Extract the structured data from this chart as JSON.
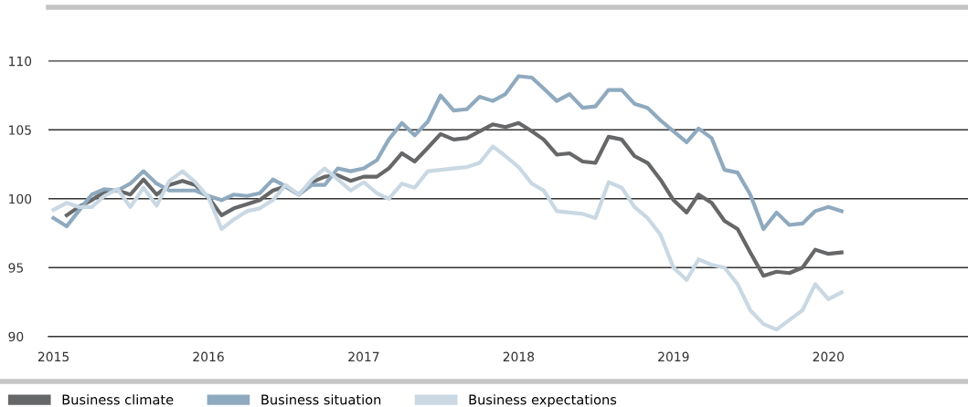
{
  "chart_data": {
    "type": "line",
    "x": [
      "2015-01",
      "2015-02",
      "2015-03",
      "2015-04",
      "2015-05",
      "2015-06",
      "2015-07",
      "2015-08",
      "2015-09",
      "2015-10",
      "2015-11",
      "2015-12",
      "2016-01",
      "2016-02",
      "2016-03",
      "2016-04",
      "2016-05",
      "2016-06",
      "2016-07",
      "2016-08",
      "2016-09",
      "2016-10",
      "2016-11",
      "2016-12",
      "2017-01",
      "2017-02",
      "2017-03",
      "2017-04",
      "2017-05",
      "2017-06",
      "2017-07",
      "2017-08",
      "2017-09",
      "2017-10",
      "2017-11",
      "2017-12",
      "2018-01",
      "2018-02",
      "2018-03",
      "2018-04",
      "2018-05",
      "2018-06",
      "2018-07",
      "2018-08",
      "2018-09",
      "2018-10",
      "2018-11",
      "2018-12",
      "2019-01",
      "2019-02",
      "2019-03",
      "2019-04",
      "2019-05",
      "2019-06",
      "2019-07",
      "2019-08",
      "2019-09",
      "2019-10",
      "2019-11",
      "2019-12",
      "2020-01",
      "2020-02"
    ],
    "series": [
      {
        "name": "Business climate",
        "color": "#666769",
        "values": [
          null,
          98.8,
          99.4,
          99.9,
          100.5,
          100.6,
          100.3,
          101.4,
          100.3,
          101.0,
          101.3,
          101.0,
          100.1,
          98.8,
          99.3,
          99.6,
          99.9,
          100.6,
          100.9,
          100.3,
          101.2,
          101.6,
          101.7,
          101.3,
          101.6,
          101.6,
          102.2,
          103.3,
          102.7,
          103.7,
          104.7,
          104.3,
          104.4,
          104.9,
          105.4,
          105.2,
          105.5,
          104.9,
          104.3,
          103.2,
          103.3,
          102.7,
          102.6,
          104.5,
          104.3,
          103.1,
          102.6,
          101.4,
          99.9,
          99.0,
          100.3,
          99.7,
          98.4,
          97.8,
          96.1,
          94.4,
          94.7,
          94.6,
          95.0,
          96.3,
          96.0,
          96.1
        ]
      },
      {
        "name": "Business situation",
        "color": "#8faabf",
        "values": [
          98.6,
          98.0,
          99.1,
          100.3,
          100.7,
          100.6,
          101.1,
          102.0,
          101.1,
          100.6,
          100.6,
          100.6,
          100.2,
          99.9,
          100.3,
          100.2,
          100.4,
          101.4,
          100.9,
          100.3,
          101.0,
          101.0,
          102.2,
          102.0,
          102.2,
          102.8,
          104.3,
          105.5,
          104.6,
          105.6,
          107.5,
          106.4,
          106.5,
          107.4,
          107.1,
          107.6,
          108.9,
          108.8,
          108.0,
          107.1,
          107.6,
          106.6,
          106.7,
          107.9,
          107.9,
          106.9,
          106.6,
          105.7,
          104.9,
          104.1,
          105.1,
          104.4,
          102.1,
          101.9,
          100.3,
          97.8,
          99.0,
          98.1,
          98.2,
          99.1,
          99.4,
          99.1
        ]
      },
      {
        "name": "Business expectations",
        "color": "#c9d8e3",
        "values": [
          99.2,
          99.7,
          99.4,
          99.4,
          100.2,
          100.7,
          99.4,
          100.8,
          99.5,
          101.3,
          102.0,
          101.2,
          100.1,
          97.8,
          98.5,
          99.1,
          99.3,
          99.9,
          101.0,
          100.3,
          101.4,
          102.2,
          101.4,
          100.6,
          101.2,
          100.4,
          100.0,
          101.1,
          100.8,
          102.0,
          102.1,
          102.2,
          102.3,
          102.6,
          103.8,
          103.1,
          102.3,
          101.1,
          100.6,
          99.1,
          99.0,
          98.9,
          98.6,
          101.2,
          100.8,
          99.4,
          98.6,
          97.4,
          95.0,
          94.1,
          95.6,
          95.2,
          95.0,
          93.8,
          91.9,
          90.9,
          90.5,
          91.2,
          91.9,
          93.8,
          92.7,
          93.2
        ]
      }
    ],
    "xlim": [
      "2014-12-20",
      "2020-11-25"
    ],
    "xticks": [
      {
        "value": "2015-01-01",
        "label": "2015"
      },
      {
        "value": "2016-01-01",
        "label": "2016"
      },
      {
        "value": "2017-01-01",
        "label": "2017"
      },
      {
        "value": "2018-01-01",
        "label": "2018"
      },
      {
        "value": "2019-01-01",
        "label": "2019"
      },
      {
        "value": "2020-01-01",
        "label": "2020"
      }
    ],
    "ylim": [
      90,
      113.9
    ],
    "yticks": [
      90,
      95,
      100,
      105,
      110
    ],
    "grid": "y",
    "legend": "bottom",
    "marker": "none",
    "line_style": "solid"
  }
}
